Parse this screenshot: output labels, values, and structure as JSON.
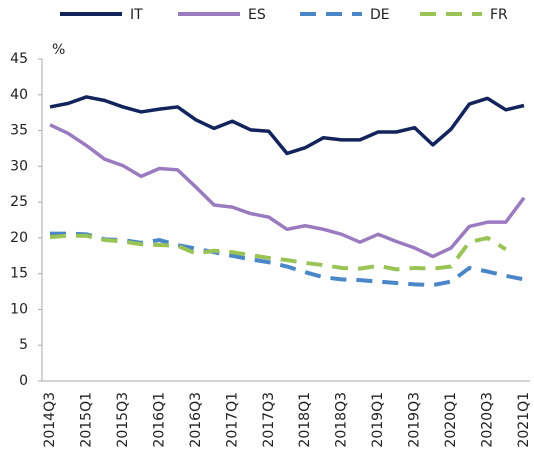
{
  "chart_data": {
    "type": "line",
    "y_label": "%",
    "categories": [
      "2014Q3",
      null,
      "2015Q1",
      null,
      "2015Q3",
      null,
      "2016Q1",
      null,
      "2016Q3",
      null,
      "2017Q1",
      null,
      "2017Q3",
      null,
      "2018Q1",
      null,
      "2018Q3",
      null,
      "2019Q1",
      null,
      "2019Q3",
      null,
      "2020Q1",
      null,
      "2020Q3",
      null,
      "2021Q1"
    ],
    "series": [
      {
        "name": "IT",
        "color": "#13235b",
        "dashed": false,
        "values": [
          38.3,
          38.8,
          39.7,
          39.2,
          38.3,
          37.6,
          38.0,
          38.3,
          36.5,
          35.3,
          36.3,
          35.1,
          34.9,
          31.8,
          32.6,
          34.0,
          33.7,
          33.7,
          34.8,
          34.8,
          35.4,
          33.0,
          35.2,
          38.7,
          39.5,
          37.9,
          38.5
        ]
      },
      {
        "name": "ES",
        "color": "#9b7bbf",
        "dashed": false,
        "values": [
          35.8,
          34.6,
          32.9,
          31.0,
          30.1,
          28.6,
          29.7,
          29.5,
          27.1,
          24.6,
          24.3,
          23.4,
          22.9,
          21.2,
          21.7,
          21.2,
          20.5,
          19.4,
          20.5,
          19.5,
          18.6,
          17.4,
          18.6,
          21.6,
          22.2,
          22.2,
          25.6
        ]
      },
      {
        "name": "DE",
        "color": "#4a86c8",
        "dashed": true,
        "values": [
          20.6,
          20.6,
          20.5,
          19.8,
          19.7,
          19.3,
          19.7,
          19.0,
          18.5,
          18.0,
          17.5,
          17.0,
          16.6,
          16.0,
          15.2,
          14.5,
          14.2,
          14.1,
          13.9,
          13.7,
          13.5,
          13.4,
          13.9,
          15.8,
          15.3,
          14.7,
          14.2
        ]
      },
      {
        "name": "FR",
        "color": "#9ac356",
        "dashed": true,
        "values": [
          20.1,
          20.3,
          20.3,
          19.7,
          19.5,
          19.1,
          19.0,
          18.9,
          17.8,
          18.2,
          18.0,
          17.6,
          17.2,
          16.9,
          16.5,
          16.2,
          15.8,
          15.7,
          16.1,
          15.6,
          15.8,
          15.7,
          16.0,
          19.4,
          20.0,
          18.4,
          null
        ]
      }
    ],
    "ylim": [
      0,
      45
    ],
    "yticks": [
      0,
      5,
      10,
      15,
      20,
      25,
      30,
      35,
      40,
      45
    ],
    "grid": false
  }
}
